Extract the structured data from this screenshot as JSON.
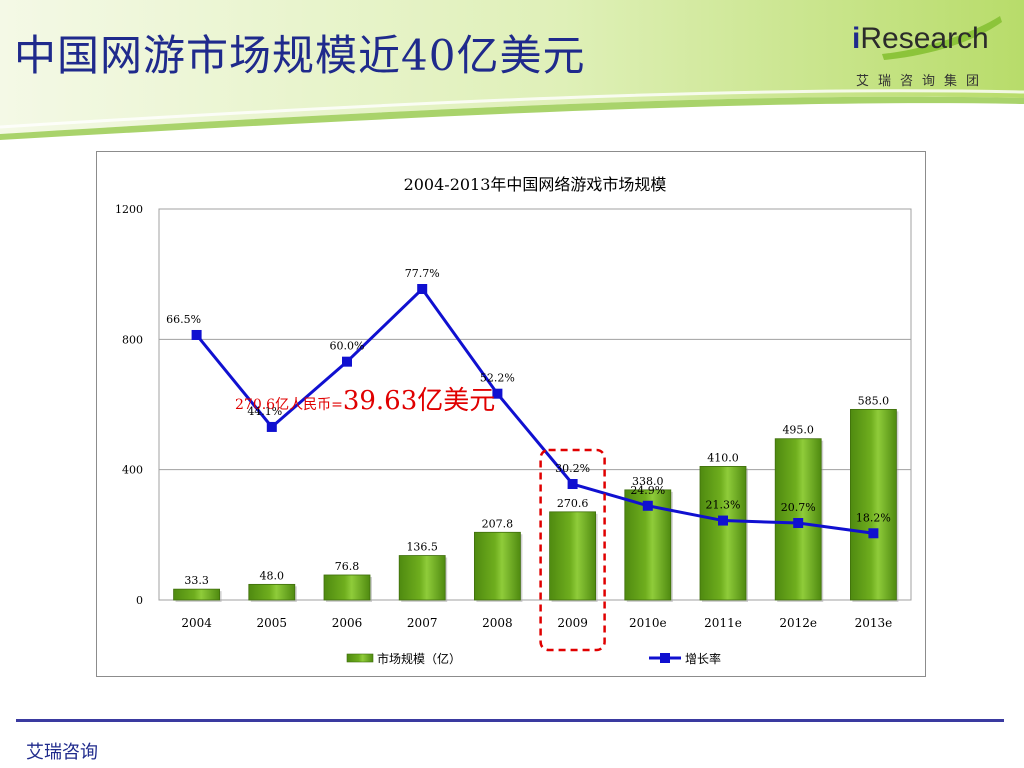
{
  "slide": {
    "title": "中国网游市场规模近40亿美元",
    "footer": "艾瑞咨询"
  },
  "logo": {
    "wordmark_i": "i",
    "wordmark_rest": "Research",
    "subtitle": "艾瑞咨询集团"
  },
  "colors": {
    "bar": "#6fae1e",
    "line": "#1010d0",
    "annotation": "#e00000",
    "highlight_box": "#e00000"
  },
  "chart_data": {
    "type": "bar+line",
    "title": "2004-2013年中国网络游戏市场规模",
    "categories": [
      "2004",
      "2005",
      "2006",
      "2007",
      "2008",
      "2009",
      "2010e",
      "2011e",
      "2012e",
      "2013e"
    ],
    "series": [
      {
        "name": "市场规模（亿）",
        "type": "bar",
        "values": [
          33.3,
          48.0,
          76.8,
          136.5,
          207.8,
          270.6,
          338.0,
          410.0,
          495.0,
          585.0
        ],
        "labels": [
          "33.3",
          "48.0",
          "76.8",
          "136.5",
          "207.8",
          "270.6",
          "338.0",
          "410.0",
          "495.0",
          "585.0"
        ]
      },
      {
        "name": "增长率",
        "type": "line",
        "values": [
          66.5,
          44.1,
          60.0,
          77.7,
          52.2,
          30.2,
          24.9,
          21.3,
          20.7,
          18.2
        ],
        "labels": [
          "66.5%",
          "44.1%",
          "60.0%",
          "77.7%",
          "52.2%",
          "30.2%",
          "24.9%",
          "21.3%",
          "20.7%",
          "18.2%"
        ]
      }
    ],
    "y_ticks": [
      0,
      400,
      800,
      1200
    ],
    "ylim": [
      0,
      1200
    ],
    "growth_rate_axis": [
      0,
      100
    ],
    "grid": true,
    "legend": "bottom",
    "highlight_category": "2009",
    "annotation": {
      "prefix": "270.6亿人民币=",
      "emphasis": "39.63亿美元"
    }
  }
}
